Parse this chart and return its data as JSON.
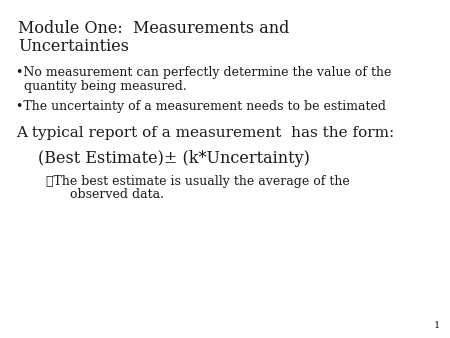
{
  "title_line1": "Module One:  Measurements and",
  "title_line2": "Uncertainties",
  "bullet1_line1": "•No measurement can perfectly determine the value of the",
  "bullet1_line2": "quantity being measured.",
  "bullet2": "•The uncertainty of a measurement needs to be estimated",
  "section": "A typical report of a measurement  has the form:",
  "formula": "(Best Estimate)± (k*Uncertainty)",
  "arrow_bullet_line1": "➤The best estimate is usually the average of the",
  "arrow_bullet_line2": "      observed data.",
  "page_number": "1",
  "text_color": "#1a1a1a",
  "title_fontsize": 11.5,
  "bullet_fontsize": 9.0,
  "section_fontsize": 11.0,
  "formula_fontsize": 11.5,
  "arrow_fontsize": 9.0,
  "page_fontsize": 7.0,
  "font_family": "serif"
}
